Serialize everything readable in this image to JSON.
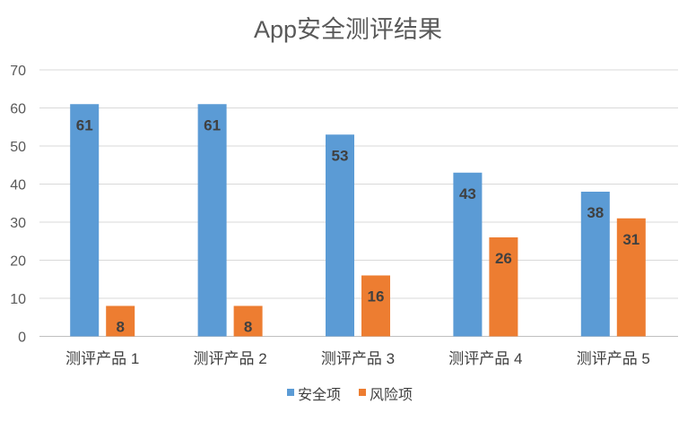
{
  "chart_data": {
    "type": "bar",
    "title": "App安全测评结果",
    "xlabel": "",
    "ylabel": "",
    "ylim": [
      0,
      70
    ],
    "yticks": [
      0,
      10,
      20,
      30,
      40,
      50,
      60,
      70
    ],
    "grid": true,
    "legend_position": "bottom",
    "categories": [
      "测评产品 1",
      "测评产品 2",
      "测评产品 3",
      "测评产品 4",
      "测评产品 5"
    ],
    "series": [
      {
        "name": "安全项",
        "color": "#5b9bd5",
        "values": [
          61,
          61,
          53,
          43,
          38
        ]
      },
      {
        "name": "风险项",
        "color": "#ed7d31",
        "values": [
          8,
          8,
          16,
          26,
          31
        ]
      }
    ]
  }
}
